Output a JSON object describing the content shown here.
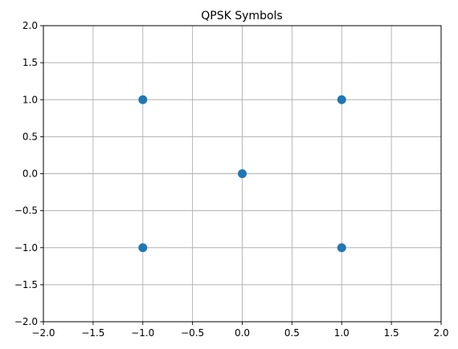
{
  "chart_data": {
    "type": "scatter",
    "title": "QPSK Symbols",
    "xlabel": "",
    "ylabel": "",
    "xlim": [
      -2.0,
      2.0
    ],
    "ylim": [
      -2.0,
      2.0
    ],
    "x_ticks": [
      -2.0,
      -1.5,
      -1.0,
      -0.5,
      0.0,
      0.5,
      1.0,
      1.5,
      2.0
    ],
    "y_ticks": [
      -2.0,
      -1.5,
      -1.0,
      -0.5,
      0.0,
      0.5,
      1.0,
      1.5,
      2.0
    ],
    "x_tick_labels": [
      "−2.0",
      "−1.5",
      "−1.0",
      "−0.5",
      "0.0",
      "0.5",
      "1.0",
      "1.5",
      "2.0"
    ],
    "y_tick_labels": [
      "−2.0",
      "−1.5",
      "−1.0",
      "−0.5",
      "0.0",
      "0.5",
      "1.0",
      "1.5",
      "2.0"
    ],
    "grid": true,
    "series": [
      {
        "color": "#1f77b4",
        "points": [
          {
            "x": -1.0,
            "y": 1.0
          },
          {
            "x": 1.0,
            "y": 1.0
          },
          {
            "x": 0.0,
            "y": 0.0
          },
          {
            "x": -1.0,
            "y": -1.0
          },
          {
            "x": 1.0,
            "y": -1.0
          }
        ]
      }
    ]
  }
}
